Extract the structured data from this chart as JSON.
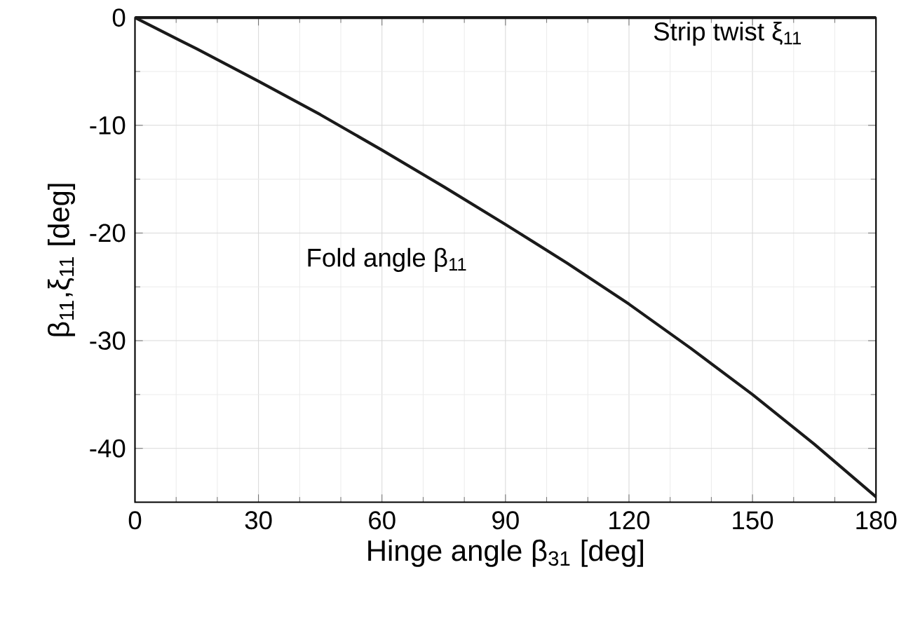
{
  "chart_data": {
    "type": "line",
    "xlabel": "Hinge angle β$_{31}$ [deg]",
    "ylabel": "β$_{11}$,ξ$_{11}$ [deg]",
    "x": [
      0,
      15,
      30,
      45,
      60,
      75,
      90,
      105,
      120,
      135,
      150,
      165,
      180
    ],
    "series": [
      {
        "name": "Strip twist ξ$_{11}$",
        "color": "#1a1a1a",
        "values": [
          0,
          0,
          0,
          0,
          0,
          0,
          0,
          0,
          0,
          0,
          0,
          0,
          0
        ]
      },
      {
        "name": "Fold angle β$_{11}$",
        "color": "#1a1a1a",
        "values": [
          0,
          -2.9,
          -5.9,
          -9.0,
          -12.3,
          -15.7,
          -19.2,
          -22.8,
          -26.6,
          -30.7,
          -35.0,
          -39.6,
          -44.5
        ]
      }
    ],
    "xlim": [
      0,
      180
    ],
    "ylim": [
      -45,
      0
    ],
    "xticks": [
      0,
      30,
      60,
      90,
      120,
      150,
      180
    ],
    "yticks": [
      -40,
      -30,
      -20,
      -10,
      0
    ],
    "grid": true,
    "marker": "none",
    "line_style": "solid"
  }
}
